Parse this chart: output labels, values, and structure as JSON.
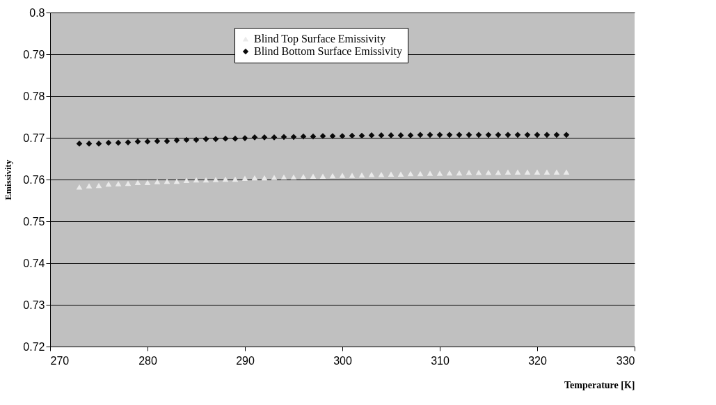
{
  "chart_data": {
    "type": "scatter",
    "xlabel": "Temperature [K]",
    "ylabel": "Emissivity",
    "x": [
      273,
      274,
      275,
      276,
      277,
      278,
      279,
      280,
      281,
      282,
      283,
      284,
      285,
      286,
      287,
      288,
      289,
      290,
      291,
      292,
      293,
      294,
      295,
      296,
      297,
      298,
      299,
      300,
      301,
      302,
      303,
      304,
      305,
      306,
      307,
      308,
      309,
      310,
      311,
      312,
      313,
      314,
      315,
      316,
      317,
      318,
      319,
      320,
      321,
      322,
      323
    ],
    "series": [
      {
        "name": "Blind Top Surface Emissivity",
        "color": "#eaeaea",
        "marker": "triangle",
        "values": [
          0.7582,
          0.7585,
          0.7586,
          0.7589,
          0.759,
          0.7591,
          0.7593,
          0.7593,
          0.7595,
          0.7596,
          0.7596,
          0.7598,
          0.7599,
          0.7599,
          0.76,
          0.7601,
          0.7601,
          0.7603,
          0.7604,
          0.7604,
          0.7605,
          0.7606,
          0.7606,
          0.7607,
          0.7608,
          0.7608,
          0.7609,
          0.761,
          0.761,
          0.7611,
          0.7612,
          0.7612,
          0.7613,
          0.7613,
          0.7614,
          0.7614,
          0.7615,
          0.7615,
          0.7616,
          0.7616,
          0.7617,
          0.7617,
          0.7617,
          0.7617,
          0.7618,
          0.7618,
          0.7618,
          0.7618,
          0.7618,
          0.7618,
          0.7618
        ]
      },
      {
        "name": "Blind Bottom Surface Emissivity",
        "color": "#0a0a0a",
        "marker": "diamond",
        "values": [
          0.7686,
          0.7686,
          0.7686,
          0.7688,
          0.7688,
          0.7689,
          0.7691,
          0.7691,
          0.7692,
          0.7692,
          0.7694,
          0.7695,
          0.7695,
          0.7697,
          0.7697,
          0.7698,
          0.7698,
          0.7699,
          0.7701,
          0.7701,
          0.7701,
          0.7702,
          0.7702,
          0.7703,
          0.7703,
          0.7704,
          0.7704,
          0.7704,
          0.7705,
          0.7705,
          0.7706,
          0.7706,
          0.7706,
          0.7706,
          0.7706,
          0.7707,
          0.7707,
          0.7707,
          0.7707,
          0.7707,
          0.7707,
          0.7707,
          0.7707,
          0.7707,
          0.7707,
          0.7707,
          0.7707,
          0.7707,
          0.7707,
          0.7707,
          0.7707
        ]
      }
    ],
    "xlim": [
      270,
      330
    ],
    "xticks": [
      270,
      280,
      290,
      300,
      310,
      320,
      330
    ],
    "ylim": [
      0.72,
      0.8
    ],
    "yticks": [
      0.72,
      0.73,
      0.74,
      0.75,
      0.76,
      0.77,
      0.78,
      0.79,
      0.8
    ],
    "grid": "y",
    "legend": "top"
  }
}
